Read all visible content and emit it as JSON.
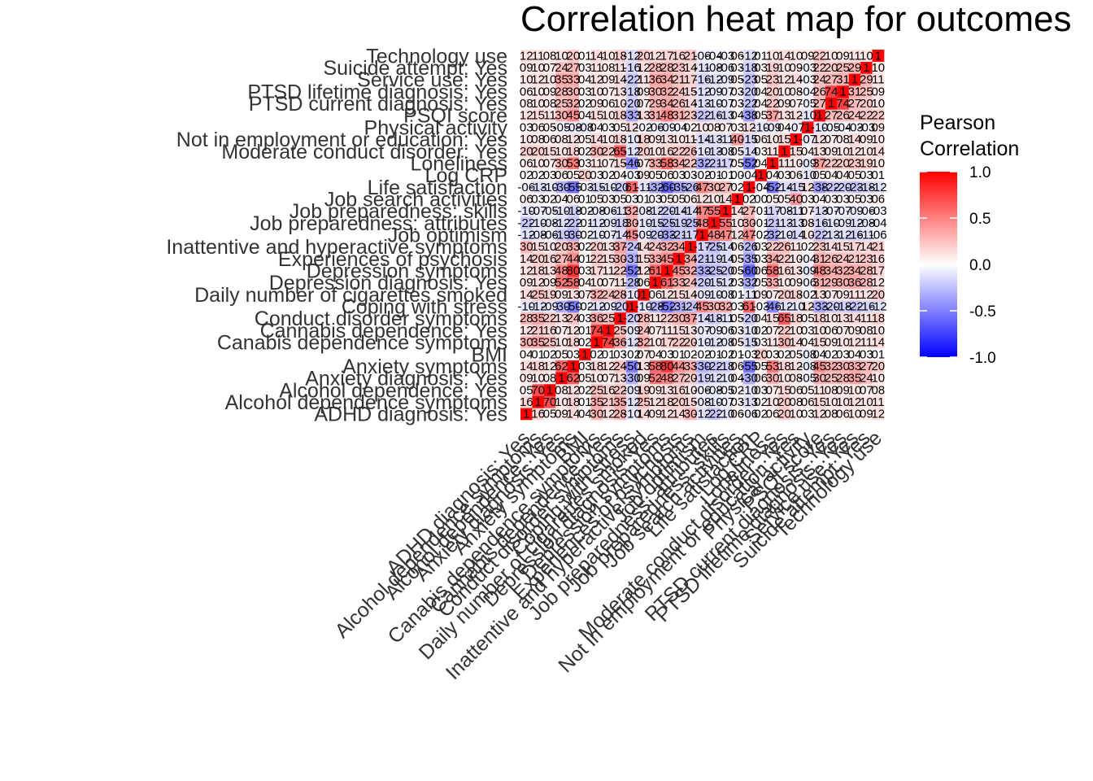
{
  "chart_data": {
    "type": "heatmap",
    "title": "Correlation heat map for outcomes",
    "variables": [
      "ADHD diagnosis: Yes",
      "Alcohol dependence symptoms",
      "Alcohol dependence: Yes",
      "Anxiety diagnosis: Yes",
      "Anxiety symptoms",
      "BMI",
      "Canabis dependence symptoms",
      "Cannabis dependence: Yes",
      "Conduct disorder symptoms",
      "Coping with stress",
      "Daily number of cigarettes smoked",
      "Depression diagnosis: Yes",
      "Depression symptoms",
      "Experiences of psychosis",
      "Inattentive and hyperactive symptoms",
      "Job optimism",
      "Job preparedness: attributes",
      "Job preparedness: skills",
      "Job search activities",
      "Life satisfaction",
      "Log CRP",
      "Loneliness",
      "Moderate conduct disorder: Yes",
      "Not in employment or education: Yes",
      "Physical activity",
      "PSQI score",
      "PTSD current diagnosis: Yes",
      "PTSD lifetime diagnosis: Yes",
      "Service use: Yes",
      "Suicide attempt: Yes",
      "Technology use"
    ],
    "values": [
      [
        1,
        0.16,
        0.05,
        0.09,
        0.14,
        0.04,
        0.3,
        0.12,
        0.28,
        -0.1,
        0.14,
        0.09,
        0.12,
        0.14,
        0.3,
        -0.12,
        -0.22,
        -0.1,
        0.06,
        -0.06,
        0.02,
        0.06,
        0.2,
        0.1,
        0.03,
        0.12,
        0.08,
        0.06,
        0.1,
        0.09,
        0.12
      ],
      [
        0.16,
        1,
        0.7,
        0.1,
        0.18,
        0.01,
        0.35,
        0.21,
        0.35,
        -0.12,
        0.25,
        0.12,
        0.18,
        0.2,
        0.15,
        -0.08,
        -0.1,
        -0.07,
        0.03,
        -0.13,
        0.02,
        0.1,
        0.2,
        0.08,
        0.06,
        0.15,
        0.1,
        0.1,
        0.12,
        0.1,
        0.11
      ],
      [
        0.05,
        0.7,
        1,
        0.08,
        0.12,
        0.02,
        0.25,
        0.16,
        0.22,
        -0.09,
        0.19,
        0.09,
        0.13,
        0.16,
        0.1,
        -0.06,
        -0.08,
        -0.05,
        0.02,
        -0.1,
        0.03,
        0.07,
        0.15,
        0.06,
        0.05,
        0.11,
        0.08,
        0.09,
        0.1,
        0.07,
        0.08
      ],
      [
        0.09,
        0.1,
        0.08,
        1,
        0.62,
        0.05,
        0.1,
        0.07,
        0.13,
        -0.3,
        0.09,
        0.52,
        0.48,
        0.27,
        0.2,
        -0.19,
        -0.12,
        -0.1,
        0.04,
        -0.3,
        0.06,
        0.3,
        0.1,
        0.08,
        -0.05,
        0.3,
        0.25,
        0.28,
        0.35,
        0.24,
        0.1
      ],
      [
        0.14,
        0.18,
        0.12,
        0.62,
        1,
        0.03,
        0.18,
        0.12,
        0.24,
        -0.5,
        0.13,
        0.58,
        0.8,
        0.44,
        0.33,
        -0.3,
        -0.22,
        -0.18,
        0.06,
        -0.55,
        0.05,
        0.53,
        0.18,
        0.12,
        -0.08,
        0.45,
        0.32,
        0.3,
        0.33,
        0.27,
        0.2
      ],
      [
        0.04,
        0.01,
        0.02,
        0.05,
        0.03,
        1,
        0.02,
        0.01,
        0.03,
        -0.02,
        0.07,
        0.04,
        0.03,
        0.01,
        0.02,
        -0.02,
        -0.01,
        -0.02,
        0.01,
        -0.03,
        0.2,
        0.03,
        0.02,
        0.05,
        -0.08,
        0.04,
        0.02,
        0.03,
        0.04,
        0.03,
        0.01
      ],
      [
        0.3,
        0.35,
        0.25,
        0.1,
        0.18,
        0.02,
        1,
        0.74,
        0.36,
        -0.12,
        0.32,
        0.1,
        0.17,
        0.22,
        0.2,
        -0.1,
        -0.12,
        -0.08,
        0.05,
        -0.15,
        0.03,
        0.11,
        0.3,
        0.14,
        0.04,
        0.15,
        0.09,
        0.1,
        0.12,
        0.11,
        0.14
      ],
      [
        0.12,
        0.21,
        0.16,
        0.07,
        0.12,
        0.01,
        0.74,
        1,
        0.25,
        -0.09,
        0.24,
        0.07,
        0.11,
        0.15,
        0.13,
        -0.07,
        -0.09,
        -0.06,
        0.03,
        -0.1,
        0.02,
        0.07,
        0.22,
        0.1,
        0.03,
        0.1,
        0.06,
        0.07,
        0.09,
        0.08,
        0.1
      ],
      [
        0.28,
        0.35,
        0.22,
        0.13,
        0.24,
        0.03,
        0.36,
        0.25,
        1,
        -0.2,
        0.28,
        0.11,
        0.22,
        0.3,
        0.37,
        -0.14,
        -0.18,
        -0.11,
        0.05,
        -0.2,
        0.04,
        0.15,
        0.65,
        0.18,
        0.05,
        0.18,
        0.1,
        0.13,
        0.14,
        0.11,
        0.18
      ],
      [
        -0.1,
        -0.12,
        -0.09,
        -0.3,
        -0.5,
        -0.02,
        -0.12,
        -0.09,
        -0.2,
        1,
        -0.1,
        -0.28,
        -0.52,
        -0.31,
        -0.24,
        0.45,
        0.3,
        0.32,
        0.03,
        0.61,
        -0.03,
        -0.46,
        -0.12,
        -0.1,
        0.12,
        -0.33,
        -0.2,
        -0.18,
        -0.22,
        -0.16,
        -0.12
      ],
      [
        0.14,
        0.25,
        0.19,
        0.09,
        0.13,
        0.07,
        0.32,
        0.24,
        0.28,
        -0.1,
        1,
        0.06,
        0.12,
        0.15,
        0.14,
        -0.09,
        -0.1,
        -0.08,
        0.01,
        -0.11,
        0.09,
        0.07,
        0.2,
        0.18,
        -0.02,
        0.13,
        0.07,
        0.09,
        0.11,
        0.12,
        0.2
      ],
      [
        0.09,
        0.12,
        0.09,
        0.52,
        0.58,
        0.04,
        0.1,
        0.07,
        0.11,
        -0.28,
        0.06,
        1,
        0.61,
        0.33,
        0.24,
        -0.2,
        -0.15,
        -0.12,
        0.03,
        -0.32,
        0.05,
        0.33,
        0.1,
        0.09,
        -0.06,
        0.31,
        0.29,
        0.3,
        0.36,
        0.28,
        0.12
      ],
      [
        0.12,
        0.18,
        0.13,
        0.48,
        0.8,
        0.03,
        0.17,
        0.11,
        0.22,
        -0.52,
        0.12,
        0.61,
        1,
        0.45,
        0.32,
        -0.33,
        -0.25,
        -0.2,
        0.05,
        -0.6,
        0.06,
        0.58,
        0.16,
        0.13,
        -0.09,
        0.48,
        0.34,
        0.32,
        0.34,
        0.28,
        0.17
      ],
      [
        0.14,
        0.2,
        0.16,
        0.27,
        0.44,
        0.01,
        0.22,
        0.15,
        0.3,
        -0.31,
        0.15,
        0.33,
        0.45,
        1,
        0.34,
        -0.21,
        -0.19,
        -0.14,
        0.05,
        -0.35,
        0.03,
        0.34,
        0.22,
        0.1,
        -0.04,
        0.31,
        0.26,
        0.24,
        0.21,
        0.23,
        0.16
      ],
      [
        0.3,
        0.15,
        0.1,
        0.2,
        0.33,
        0.02,
        0.2,
        0.13,
        0.37,
        -0.24,
        0.14,
        0.24,
        0.32,
        0.34,
        1,
        -0.17,
        -0.25,
        -0.14,
        0.06,
        -0.26,
        0.03,
        0.22,
        0.26,
        0.11,
        0.02,
        0.23,
        0.14,
        0.15,
        0.17,
        0.14,
        0.21
      ],
      [
        -0.12,
        -0.08,
        -0.06,
        -0.19,
        -0.3,
        -0.02,
        -0.1,
        -0.07,
        -0.14,
        0.45,
        -0.09,
        -0.2,
        -0.33,
        -0.21,
        -0.17,
        1,
        0.48,
        0.47,
        0.12,
        0.47,
        -0.02,
        -0.32,
        -0.1,
        -0.14,
        0.1,
        -0.22,
        -0.13,
        -0.12,
        -0.16,
        -0.11,
        -0.06
      ],
      [
        -0.22,
        -0.1,
        -0.08,
        -0.12,
        -0.22,
        -0.01,
        -0.12,
        -0.09,
        -0.18,
        0.3,
        -0.1,
        -0.15,
        -0.25,
        -0.19,
        -0.25,
        0.48,
        1,
        0.55,
        0.1,
        0.3,
        -0.01,
        -0.21,
        -0.13,
        -0.13,
        0.08,
        -0.16,
        -0.1,
        -0.09,
        -0.12,
        -0.08,
        -0.04
      ],
      [
        -0.1,
        -0.07,
        -0.05,
        -0.1,
        -0.18,
        -0.02,
        -0.08,
        -0.06,
        -0.11,
        0.32,
        -0.08,
        -0.12,
        -0.2,
        -0.14,
        -0.14,
        0.47,
        0.55,
        1,
        0.14,
        0.27,
        -0.01,
        -0.17,
        -0.08,
        -0.11,
        0.07,
        -0.13,
        -0.07,
        -0.07,
        -0.09,
        -0.06,
        -0.03
      ],
      [
        0.06,
        0.03,
        0.02,
        0.04,
        0.06,
        0.01,
        0.05,
        0.03,
        0.05,
        0.03,
        0.01,
        0.03,
        0.05,
        0.05,
        0.06,
        0.12,
        0.1,
        0.14,
        1,
        0.02,
        0.0,
        0.05,
        0.05,
        0.4,
        0.03,
        0.04,
        0.03,
        0.03,
        0.05,
        0.03,
        0.06
      ],
      [
        -0.06,
        -0.13,
        -0.1,
        -0.3,
        -0.55,
        -0.03,
        -0.15,
        -0.1,
        -0.2,
        0.61,
        -0.11,
        -0.32,
        -0.6,
        -0.35,
        -0.26,
        0.47,
        0.3,
        0.27,
        0.02,
        1,
        -0.04,
        -0.52,
        -0.14,
        -0.15,
        0.12,
        -0.38,
        -0.22,
        -0.2,
        -0.23,
        -0.18,
        -0.12
      ],
      [
        0.02,
        0.02,
        0.03,
        0.06,
        0.05,
        0.2,
        0.03,
        0.02,
        0.04,
        -0.03,
        0.09,
        0.05,
        0.06,
        0.03,
        0.03,
        -0.02,
        -0.01,
        -0.01,
        0.0,
        -0.04,
        1,
        0.04,
        0.03,
        0.06,
        -0.1,
        0.05,
        0.04,
        0.04,
        0.05,
        0.03,
        0.01
      ],
      [
        0.06,
        0.1,
        0.07,
        0.3,
        0.53,
        0.03,
        0.11,
        0.07,
        0.15,
        -0.46,
        0.07,
        0.33,
        0.58,
        0.34,
        0.22,
        -0.32,
        -0.21,
        -0.17,
        0.05,
        -0.52,
        0.04,
        1,
        0.11,
        0.1,
        -0.09,
        0.37,
        0.22,
        0.2,
        0.23,
        0.19,
        0.1
      ],
      [
        0.2,
        0.2,
        0.15,
        0.1,
        0.18,
        0.02,
        0.3,
        0.22,
        0.65,
        -0.12,
        0.2,
        0.1,
        0.16,
        0.22,
        0.26,
        -0.1,
        -0.13,
        -0.08,
        0.05,
        -0.14,
        0.03,
        0.11,
        1,
        0.15,
        0.04,
        0.13,
        0.09,
        0.1,
        0.12,
        0.1,
        0.14
      ],
      [
        0.1,
        0.08,
        0.06,
        0.08,
        0.12,
        0.05,
        0.14,
        0.1,
        0.18,
        -0.1,
        0.18,
        0.09,
        0.13,
        0.1,
        0.11,
        -0.14,
        -0.13,
        -0.11,
        0.4,
        -0.15,
        0.06,
        0.1,
        0.15,
        1,
        -0.07,
        0.12,
        0.07,
        0.08,
        0.14,
        0.09,
        0.1
      ],
      [
        0.03,
        0.06,
        0.05,
        -0.05,
        -0.08,
        -0.08,
        0.04,
        0.03,
        0.05,
        0.12,
        -0.02,
        -0.06,
        -0.09,
        -0.04,
        0.02,
        0.1,
        0.08,
        0.07,
        0.03,
        0.12,
        -0.1,
        -0.09,
        0.04,
        -0.07,
        1,
        -0.1,
        -0.05,
        -0.04,
        -0.03,
        -0.03,
        0.09
      ],
      [
        0.12,
        0.15,
        0.11,
        0.3,
        0.45,
        0.04,
        0.15,
        0.1,
        0.18,
        -0.33,
        0.13,
        0.31,
        0.48,
        0.31,
        0.23,
        -0.22,
        -0.16,
        -0.13,
        0.04,
        -0.38,
        0.05,
        0.37,
        0.13,
        0.12,
        -0.1,
        1,
        0.27,
        0.26,
        0.24,
        0.22,
        0.22
      ],
      [
        0.08,
        0.1,
        0.08,
        0.25,
        0.32,
        0.02,
        0.09,
        0.06,
        0.1,
        -0.2,
        0.07,
        0.29,
        0.34,
        0.26,
        0.14,
        -0.13,
        -0.1,
        -0.07,
        0.03,
        -0.22,
        0.04,
        0.22,
        0.09,
        0.07,
        -0.05,
        0.27,
        1,
        0.74,
        0.27,
        0.2,
        0.1
      ],
      [
        0.06,
        0.1,
        0.09,
        0.28,
        0.3,
        0.03,
        0.1,
        0.07,
        0.13,
        -0.18,
        0.09,
        0.3,
        0.32,
        0.24,
        0.15,
        -0.12,
        -0.09,
        -0.07,
        0.03,
        -0.2,
        0.04,
        0.2,
        0.1,
        0.08,
        -0.04,
        0.26,
        0.74,
        1,
        0.31,
        0.25,
        0.09
      ],
      [
        0.1,
        0.12,
        0.1,
        0.35,
        0.33,
        0.04,
        0.12,
        0.09,
        0.14,
        -0.22,
        0.11,
        0.36,
        0.34,
        0.21,
        0.17,
        -0.16,
        -0.12,
        -0.09,
        0.05,
        -0.23,
        0.05,
        0.23,
        0.12,
        0.14,
        -0.03,
        0.24,
        0.27,
        0.31,
        1,
        0.29,
        0.11
      ],
      [
        0.09,
        0.1,
        0.07,
        0.24,
        0.27,
        0.03,
        0.11,
        0.08,
        0.11,
        -0.16,
        0.12,
        0.28,
        0.28,
        0.23,
        0.14,
        -0.11,
        -0.08,
        -0.06,
        0.03,
        -0.18,
        0.03,
        0.19,
        0.1,
        0.09,
        -0.03,
        0.22,
        0.2,
        0.25,
        0.29,
        1,
        0.1
      ],
      [
        0.12,
        0.11,
        0.08,
        0.1,
        0.2,
        0.01,
        0.14,
        0.1,
        0.18,
        -0.12,
        0.2,
        0.12,
        0.17,
        0.16,
        0.21,
        -0.06,
        -0.04,
        -0.03,
        0.06,
        -0.12,
        0.01,
        0.1,
        0.14,
        0.1,
        0.09,
        0.22,
        0.1,
        0.09,
        0.11,
        0.1,
        1
      ]
    ],
    "scale": {
      "min": -1.0,
      "max": 1.0,
      "low_color": "#0000ff",
      "mid_color": "#ffffff",
      "high_color": "#ff0000"
    },
    "legend": {
      "title_line1": "Pearson",
      "title_line2": "Correlation",
      "ticks": [
        "1.0",
        "0.5",
        "0.0",
        "-0.5",
        "-1.0"
      ],
      "tick_values": [
        1.0,
        0.5,
        0.0,
        -0.5,
        -1.0
      ],
      "position": "right"
    },
    "grid": false
  }
}
